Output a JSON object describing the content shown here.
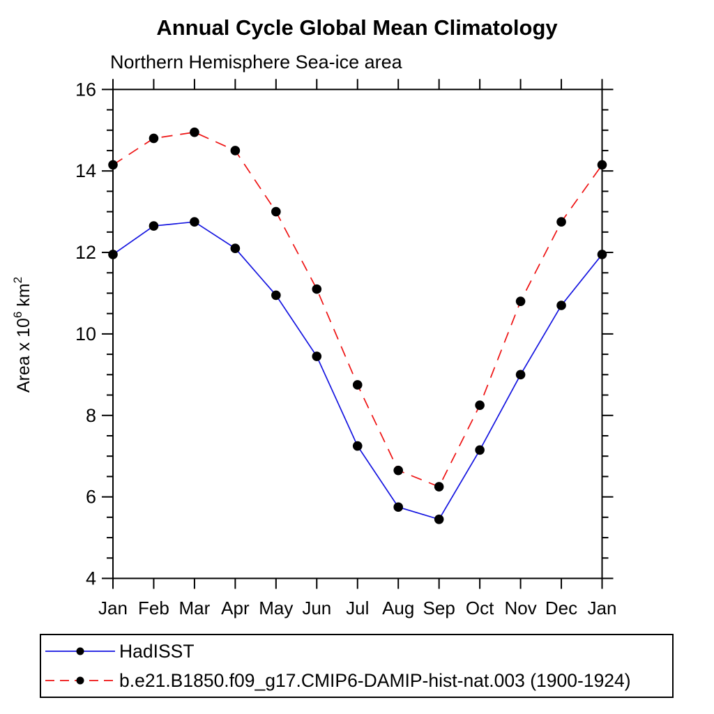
{
  "page": {
    "background": "#ffffff"
  },
  "header": {
    "title": "Annual Cycle Global Mean Climatology",
    "subtitle": "Northern Hemisphere Sea-ice area"
  },
  "chart_data": {
    "type": "line",
    "title": "Annual Cycle Global Mean Climatology",
    "subtitle": "Northern Hemisphere Sea-ice area",
    "categories": [
      "Jan",
      "Feb",
      "Mar",
      "Apr",
      "May",
      "Jun",
      "Jul",
      "Aug",
      "Sep",
      "Oct",
      "Nov",
      "Dec",
      "Jan"
    ],
    "series": [
      {
        "name": "HadISST",
        "color": "#1414e0",
        "line_style": "solid",
        "marker": "circle",
        "marker_color": "#000000",
        "values": [
          11.95,
          12.65,
          12.75,
          12.1,
          10.95,
          9.45,
          7.25,
          5.75,
          5.45,
          7.15,
          9.0,
          10.7,
          11.95
        ]
      },
      {
        "name": "b.e21.B1850.f09_g17.CMIP6-DAMIP-hist-nat.003 (1900-1924)",
        "color": "#ee1111",
        "line_style": "dashed",
        "marker": "circle",
        "marker_color": "#000000",
        "values": [
          14.15,
          14.8,
          14.95,
          14.5,
          13.0,
          11.1,
          8.75,
          6.65,
          6.25,
          8.25,
          10.8,
          12.75,
          14.15
        ]
      }
    ],
    "xlabel": "",
    "ylabel": "Area x 10^6 km^2",
    "ylabel_parts": {
      "base1": "Area x 10",
      "sup1": "6",
      "base2": " km",
      "sup2": "2"
    },
    "ylim": [
      4,
      16
    ],
    "ytick_major_step": 2,
    "ytick_minor_step": 0.5,
    "ytick_major_labels": [
      "4",
      "6",
      "8",
      "10",
      "12",
      "14",
      "16"
    ],
    "grid": false,
    "legend_position": "bottom"
  },
  "legend": {
    "items": [
      {
        "label": "HadISST",
        "color": "#1414e0",
        "style": "solid"
      },
      {
        "label": "b.e21.B1850.f09_g17.CMIP6-DAMIP-hist-nat.003 (1900-1924)",
        "color": "#ee1111",
        "style": "dashed"
      }
    ]
  }
}
